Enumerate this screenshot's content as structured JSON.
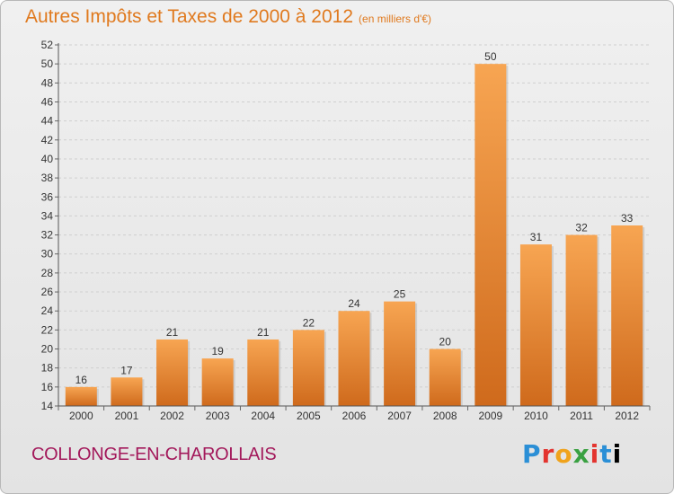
{
  "header": {
    "title": "Autres Impôts et Taxes de 2000 à 2012",
    "unit": "(en milliers d'€)"
  },
  "footer": {
    "commune": "COLLONGE-EN-CHAROLLAIS",
    "logo": "Proxiti"
  },
  "colors": {
    "bar_light": "#f7a552",
    "bar_dark": "#cf6a1c",
    "title": "#e07a1f",
    "commune": "#a3195b"
  },
  "chart_data": {
    "type": "bar",
    "title": "Autres Impôts et Taxes de 2000 à 2012",
    "xlabel": "",
    "ylabel": "",
    "categories": [
      "2000",
      "2001",
      "2002",
      "2003",
      "2004",
      "2005",
      "2006",
      "2007",
      "2008",
      "2009",
      "2010",
      "2011",
      "2012"
    ],
    "values": [
      16,
      17,
      21,
      19,
      21,
      22,
      24,
      25,
      20,
      50,
      31,
      32,
      33
    ],
    "ylim": [
      14,
      52
    ],
    "yticks": [
      14,
      16,
      18,
      20,
      22,
      24,
      26,
      28,
      30,
      32,
      34,
      36,
      38,
      40,
      42,
      44,
      46,
      48,
      50,
      52
    ],
    "grid": true,
    "legend": "none"
  }
}
